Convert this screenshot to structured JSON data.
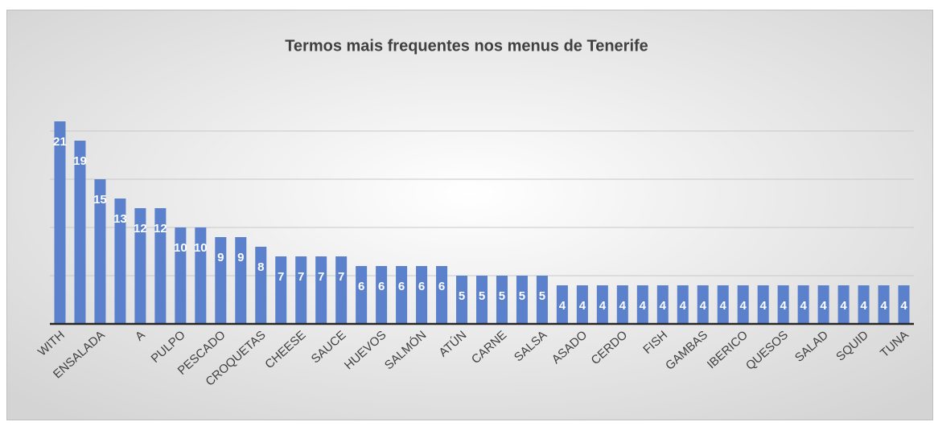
{
  "chart_data": {
    "type": "bar",
    "title": "Termos mais frequentes nos menus de Tenerife",
    "categories": [
      "WITH",
      null,
      "ENSALADA",
      null,
      "A",
      null,
      "PULPO",
      null,
      "PESCADO",
      null,
      "CROQUETAS",
      null,
      "CHEESE",
      null,
      "SAUCE",
      null,
      "HUEVOS",
      null,
      "SALMÓN",
      null,
      "ATÚN",
      null,
      "CARNE",
      null,
      "SALSA",
      null,
      "ASADO",
      null,
      "CERDO",
      null,
      "FISH",
      null,
      "GAMBAS",
      null,
      "IBERICO",
      null,
      "QUESOS",
      null,
      "SALAD",
      null,
      "SQUID",
      null,
      "TUNA"
    ],
    "values": [
      21,
      19,
      15,
      13,
      12,
      12,
      10,
      10,
      9,
      9,
      8,
      7,
      7,
      7,
      7,
      6,
      6,
      6,
      6,
      6,
      5,
      5,
      5,
      5,
      5,
      4,
      4,
      4,
      4,
      4,
      4,
      4,
      4,
      4,
      4,
      4,
      4,
      4,
      4,
      4,
      4,
      4,
      4
    ],
    "color": "#5b80cc",
    "ylim": [
      0,
      25
    ],
    "yticks": [
      0,
      5,
      10,
      15,
      20
    ],
    "grid": true
  }
}
